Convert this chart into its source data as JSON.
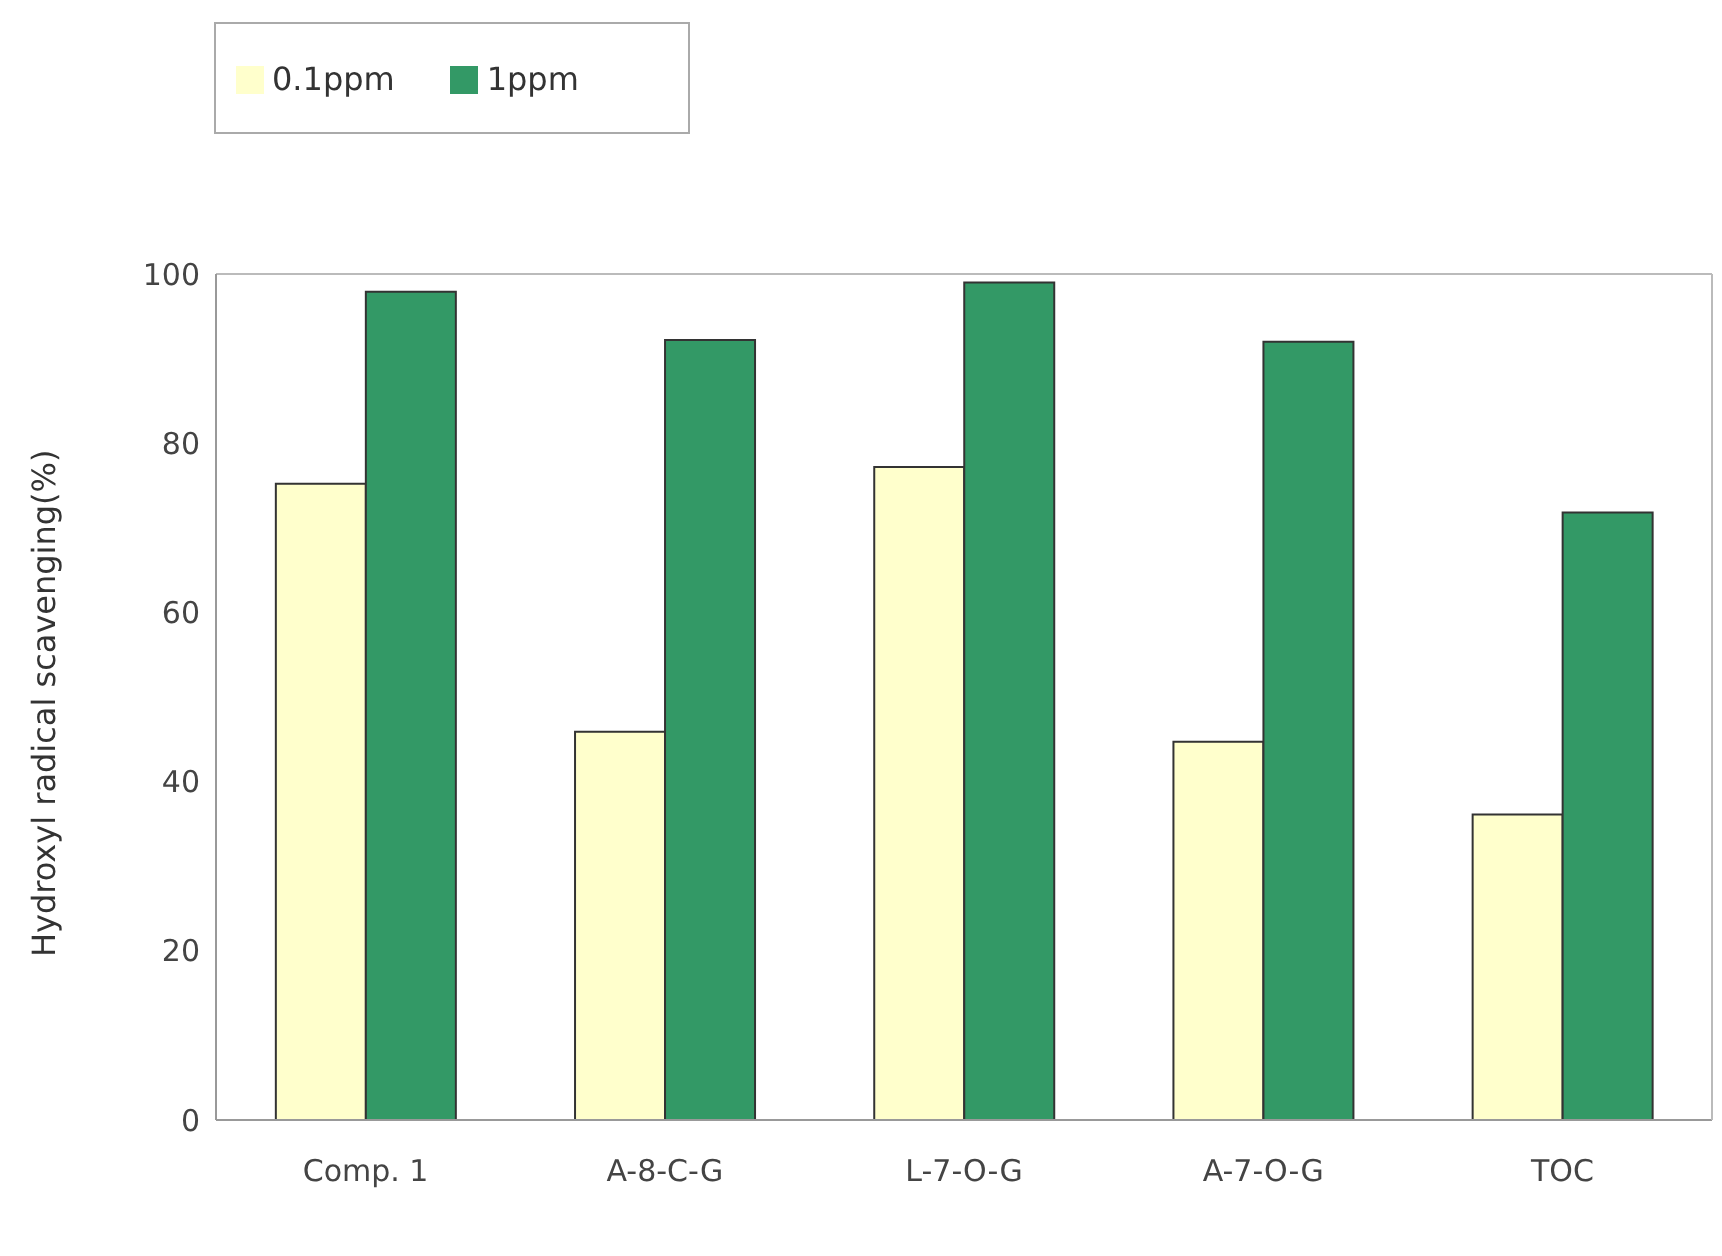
{
  "chart_data": {
    "type": "bar",
    "ylabel": "Hydroxyl radical scavenging(%)",
    "categories": [
      "Comp. 1",
      "A-8-C-G",
      "L-7-O-G",
      "A-7-O-G",
      "TOC"
    ],
    "series": [
      {
        "name": "0.1ppm",
        "color": "#ffffcc",
        "values": [
          75.2,
          45.9,
          77.2,
          44.7,
          36.1
        ]
      },
      {
        "name": "1ppm",
        "color": "#339966",
        "values": [
          97.9,
          92.2,
          99.0,
          92.0,
          71.8
        ]
      }
    ],
    "ylim": [
      0,
      100
    ],
    "yticks": [
      0,
      20,
      40,
      60,
      80,
      100
    ],
    "grid": false,
    "legend": "top left"
  }
}
